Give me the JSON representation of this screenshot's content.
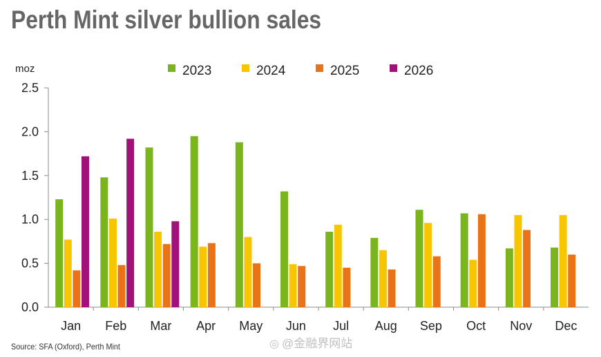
{
  "chart_data": {
    "type": "bar",
    "title": "Perth Mint silver bullion sales",
    "ylabel": "moz",
    "xlabel": "",
    "ylim": [
      0,
      2.5
    ],
    "yticks": [
      "0.0",
      "0.5",
      "1.0",
      "1.5",
      "2.0",
      "2.5"
    ],
    "ytick_values": [
      0,
      0.5,
      1.0,
      1.5,
      2.0,
      2.5
    ],
    "legend_position": "top",
    "categories": [
      "Jan",
      "Feb",
      "Mar",
      "Apr",
      "May",
      "Jun",
      "Jul",
      "Aug",
      "Sep",
      "Oct",
      "Nov",
      "Dec"
    ],
    "series": [
      {
        "name": "2023",
        "color": "#7ab51d",
        "values": [
          1.23,
          1.48,
          1.82,
          1.95,
          1.88,
          1.32,
          0.86,
          0.79,
          1.11,
          1.07,
          0.67,
          0.68
        ]
      },
      {
        "name": "2024",
        "color": "#f7c600",
        "values": [
          0.77,
          1.01,
          0.86,
          0.69,
          0.8,
          0.49,
          0.94,
          0.65,
          0.96,
          0.54,
          1.05,
          1.05
        ]
      },
      {
        "name": "2025",
        "color": "#ea7317",
        "values": [
          0.42,
          0.48,
          0.72,
          0.73,
          0.5,
          0.47,
          0.45,
          0.43,
          0.58,
          1.06,
          0.88,
          0.6
        ]
      },
      {
        "name": "2026",
        "color": "#a0117a",
        "values": [
          1.72,
          1.92,
          0.98,
          null,
          null,
          null,
          null,
          null,
          null,
          null,
          null,
          null
        ]
      }
    ]
  },
  "source": "Source: SFA (Oxford), Perth Mint",
  "watermark": "@金融界网站"
}
